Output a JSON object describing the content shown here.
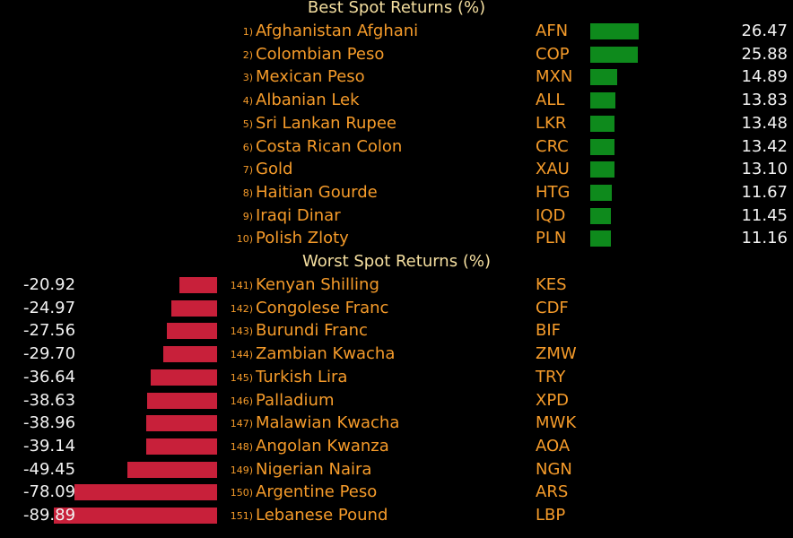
{
  "chart_data": [
    {
      "type": "bar",
      "title": "Best Spot Returns (%)",
      "unit": "%",
      "rows": [
        {
          "rank": "1)",
          "name": "Afghanistan Afghani",
          "code": "AFN",
          "value": 26.47
        },
        {
          "rank": "2)",
          "name": "Colombian Peso",
          "code": "COP",
          "value": 25.88
        },
        {
          "rank": "3)",
          "name": "Mexican Peso",
          "code": "MXN",
          "value": 14.89
        },
        {
          "rank": "4)",
          "name": "Albanian Lek",
          "code": "ALL",
          "value": 13.83
        },
        {
          "rank": "5)",
          "name": "Sri Lankan Rupee",
          "code": "LKR",
          "value": 13.48
        },
        {
          "rank": "6)",
          "name": "Costa Rican Colon",
          "code": "CRC",
          "value": 13.42
        },
        {
          "rank": "7)",
          "name": "Gold",
          "code": "XAU",
          "value": 13.1
        },
        {
          "rank": "8)",
          "name": "Haitian Gourde",
          "code": "HTG",
          "value": 11.67
        },
        {
          "rank": "9)",
          "name": "Iraqi Dinar",
          "code": "IQD",
          "value": 11.45
        },
        {
          "rank": "10)",
          "name": "Polish Zloty",
          "code": "PLN",
          "value": 11.16
        }
      ]
    },
    {
      "type": "bar",
      "title": "Worst Spot Returns (%)",
      "unit": "%",
      "rows": [
        {
          "rank": "141)",
          "name": "Kenyan Shilling",
          "code": "KES",
          "value": -20.92
        },
        {
          "rank": "142)",
          "name": "Congolese Franc",
          "code": "CDF",
          "value": -24.97
        },
        {
          "rank": "143)",
          "name": "Burundi Franc",
          "code": "BIF",
          "value": -27.56
        },
        {
          "rank": "144)",
          "name": "Zambian Kwacha",
          "code": "ZMW",
          "value": -29.7
        },
        {
          "rank": "145)",
          "name": "Turkish Lira",
          "code": "TRY",
          "value": -36.64
        },
        {
          "rank": "146)",
          "name": "Palladium",
          "code": "XPD",
          "value": -38.63
        },
        {
          "rank": "147)",
          "name": "Malawian Kwacha",
          "code": "MWK",
          "value": -38.96
        },
        {
          "rank": "148)",
          "name": "Angolan Kwanza",
          "code": "AOA",
          "value": -39.14
        },
        {
          "rank": "149)",
          "name": "Nigerian Naira",
          "code": "NGN",
          "value": -49.45
        },
        {
          "rank": "150)",
          "name": "Argentine Peso",
          "code": "ARS",
          "value": -78.09
        },
        {
          "rank": "151)",
          "name": "Lebanese Pound",
          "code": "LBP",
          "value": -89.89
        }
      ]
    }
  ],
  "colors": {
    "background": "#000000",
    "title": "#f5dfa0",
    "label": "#f59b2a",
    "value": "#f2f2f2",
    "positive_bar": "#0e8a1c",
    "negative_bar": "#c8203a"
  }
}
